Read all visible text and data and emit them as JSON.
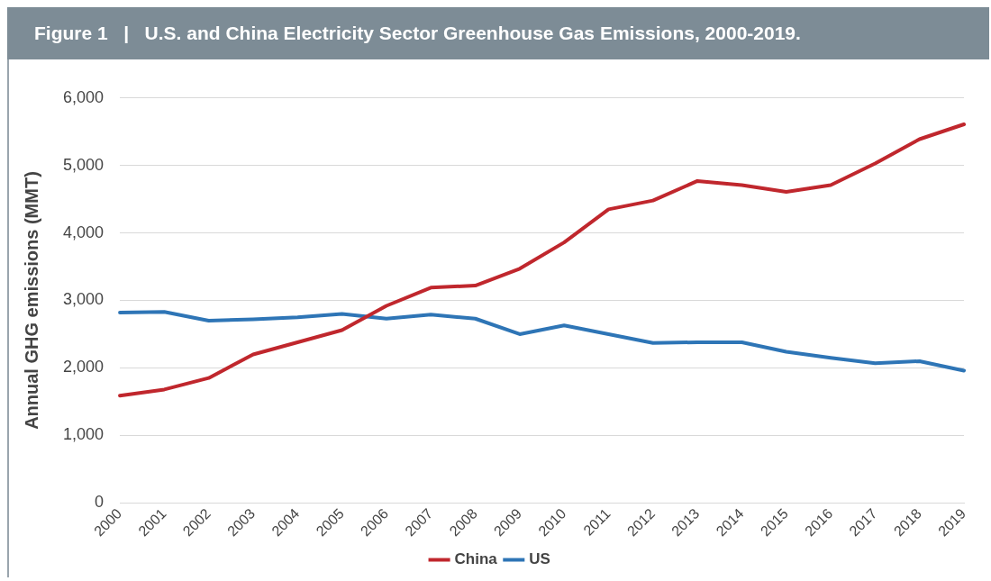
{
  "chart_data": {
    "type": "line",
    "title": "Figure 1   |   U.S. and China Electricity Sector Greenhouse Gas Emissions, 2000-2019.",
    "ylabel": "Annual GHG emissions (MMT)",
    "categories": [
      "2000",
      "2001",
      "2002",
      "2003",
      "2004",
      "2005",
      "2006",
      "2007",
      "2008",
      "2009",
      "2010",
      "2011",
      "2012",
      "2013",
      "2014",
      "2015",
      "2016",
      "2017",
      "2018",
      "2019"
    ],
    "series": [
      {
        "name": "China",
        "color": "#c0272d",
        "values": [
          1590,
          1680,
          1850,
          2200,
          2380,
          2560,
          2920,
          3190,
          3220,
          3470,
          3860,
          4350,
          4480,
          4770,
          4710,
          4610,
          4710,
          5030,
          5390,
          5610
        ]
      },
      {
        "name": "US",
        "color": "#2e75b6",
        "values": [
          2820,
          2830,
          2700,
          2720,
          2750,
          2800,
          2730,
          2790,
          2730,
          2500,
          2630,
          2500,
          2370,
          2380,
          2380,
          2240,
          2150,
          2070,
          2100,
          1960
        ]
      }
    ],
    "ylim": [
      0,
      6000
    ],
    "yticks": [
      0,
      {
        "value": 1000,
        "label": "1,000"
      },
      {
        "value": 2000,
        "label": "2,000"
      },
      {
        "value": 3000,
        "label": "3,000"
      },
      {
        "value": 4000,
        "label": "4,000"
      },
      {
        "value": 5000,
        "label": "5,000"
      },
      {
        "value": 6000,
        "label": "6,000"
      }
    ],
    "grid": "y",
    "legend": "bottom",
    "marker": "none",
    "line_style": "solid"
  }
}
